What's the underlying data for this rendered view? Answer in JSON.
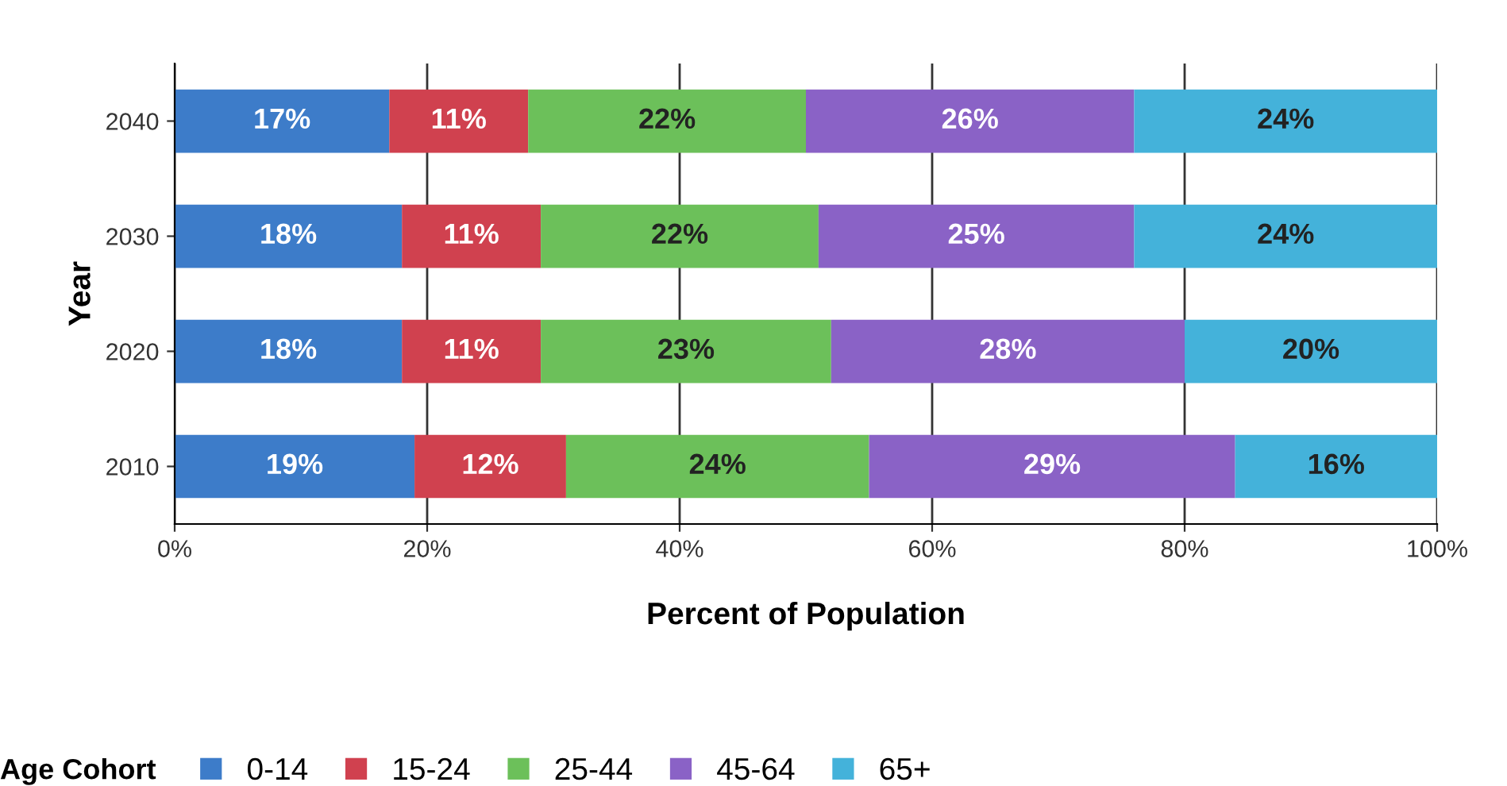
{
  "chart_data": {
    "type": "bar",
    "orientation": "horizontal",
    "stacked": true,
    "categories": [
      "2040",
      "2030",
      "2020",
      "2010"
    ],
    "series": [
      {
        "name": "0-14",
        "color": "#3d7cc9",
        "values": [
          17,
          18,
          18,
          19
        ],
        "value_labels": [
          "17%",
          "18%",
          "18%",
          "19%"
        ]
      },
      {
        "name": "15-24",
        "color": "#d0414f",
        "values": [
          11,
          11,
          11,
          12
        ],
        "value_labels": [
          "11%",
          "11%",
          "11%",
          "12%"
        ]
      },
      {
        "name": "25-44",
        "color": "#6cc05a",
        "values": [
          22,
          22,
          23,
          24
        ],
        "value_labels": [
          "22%",
          "22%",
          "23%",
          "24%"
        ]
      },
      {
        "name": "45-64",
        "color": "#8a62c6",
        "values": [
          26,
          25,
          28,
          29
        ],
        "value_labels": [
          "26%",
          "25%",
          "28%",
          "29%"
        ]
      },
      {
        "name": "65+",
        "color": "#44b2da",
        "values": [
          24,
          24,
          20,
          16
        ],
        "value_labels": [
          "24%",
          "24%",
          "20%",
          "16%"
        ]
      }
    ],
    "xlim": [
      0,
      100
    ],
    "xticks": [
      {
        "value": 0,
        "label": "0%"
      },
      {
        "value": 20,
        "label": "20%"
      },
      {
        "value": 40,
        "label": "40%"
      },
      {
        "value": 60,
        "label": "60%"
      },
      {
        "value": 80,
        "label": "80%"
      },
      {
        "value": 100,
        "label": "100%"
      }
    ],
    "xlabel": "Percent of Population",
    "ylabel": "Year",
    "legend_title": "Age Cohort",
    "legend": "bottom",
    "grid": "x"
  }
}
